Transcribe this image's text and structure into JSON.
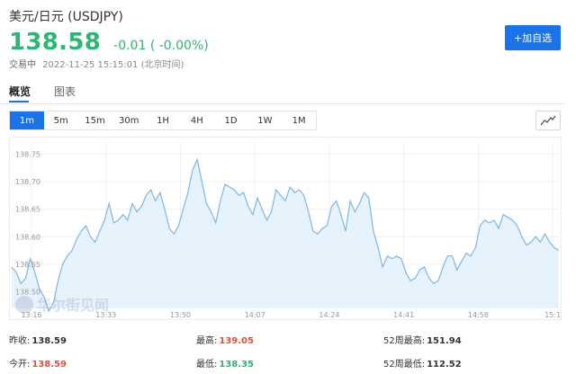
{
  "header": {
    "title": "美元/日元 (USDJPY)",
    "price": "138.58",
    "change": "-0.01 ( -0.00%)",
    "status": "交易中",
    "timestamp": "2022-11-25 15:15:01 (北京时间)"
  },
  "add_button": "+加自选",
  "tabs": [
    {
      "label": "概览",
      "active": true
    },
    {
      "label": "图表",
      "active": false
    }
  ],
  "periods": [
    {
      "label": "1m",
      "active": true
    },
    {
      "label": "5m",
      "active": false
    },
    {
      "label": "15m",
      "active": false
    },
    {
      "label": "30m",
      "active": false
    },
    {
      "label": "1H",
      "active": false
    },
    {
      "label": "4H",
      "active": false
    },
    {
      "label": "1D",
      "active": false
    },
    {
      "label": "1W",
      "active": false
    },
    {
      "label": "1M",
      "active": false
    }
  ],
  "watermark": "华尔街见闻",
  "colors": {
    "up": "#2bb673",
    "down": "#e74c3c",
    "accent": "#1a73e8",
    "line": "#7eb7e6",
    "fill": "#e6f2fc"
  },
  "chart_data": {
    "type": "area",
    "y_ticks": [
      138.75,
      138.7,
      138.65,
      138.6,
      138.55,
      138.5
    ],
    "ylim": [
      138.47,
      138.77
    ],
    "x_ticks": [
      "13:16",
      "13:33",
      "13:50",
      "14:07",
      "14:24",
      "14:41",
      "14:58",
      "15:1"
    ],
    "x": [
      0,
      1,
      2,
      3,
      4,
      5,
      6,
      7,
      8,
      9,
      10,
      11,
      12,
      13,
      14,
      15,
      16,
      17,
      18,
      19,
      20,
      21,
      22,
      23,
      24,
      25,
      26,
      27,
      28,
      29,
      30,
      31,
      32,
      33,
      34,
      35,
      36,
      37,
      38,
      39,
      40,
      41,
      42,
      43,
      44,
      45,
      46,
      47,
      48,
      49,
      50,
      51,
      52,
      53,
      54,
      55,
      56,
      57,
      58,
      59,
      60,
      61,
      62,
      63,
      64,
      65,
      66,
      67,
      68,
      69,
      70,
      71,
      72,
      73,
      74,
      75,
      76,
      77,
      78,
      79,
      80,
      81,
      82,
      83,
      84,
      85,
      86,
      87,
      88,
      89,
      90,
      91,
      92,
      93,
      94,
      95,
      96,
      97,
      98,
      99,
      100,
      101,
      102,
      103,
      104,
      105,
      106,
      107,
      108,
      109,
      110,
      111,
      112,
      113,
      114,
      115,
      116,
      117,
      118
    ],
    "values": [
      138.545,
      138.535,
      138.515,
      138.525,
      138.56,
      138.535,
      138.505,
      138.49,
      138.465,
      138.48,
      138.52,
      138.55,
      138.565,
      138.575,
      138.595,
      138.61,
      138.62,
      138.6,
      138.59,
      138.61,
      138.63,
      138.66,
      138.625,
      138.63,
      138.64,
      138.63,
      138.66,
      138.645,
      138.655,
      138.675,
      138.685,
      138.665,
      138.68,
      138.65,
      138.615,
      138.605,
      138.62,
      138.65,
      138.68,
      138.72,
      138.74,
      138.7,
      138.66,
      138.645,
      138.625,
      138.665,
      138.695,
      138.69,
      138.685,
      138.675,
      138.68,
      138.655,
      138.64,
      138.67,
      138.65,
      138.63,
      138.645,
      138.685,
      138.675,
      138.665,
      138.69,
      138.68,
      138.685,
      138.675,
      138.645,
      138.61,
      138.605,
      138.615,
      138.62,
      138.655,
      138.665,
      138.64,
      138.61,
      138.665,
      138.645,
      138.66,
      138.68,
      138.67,
      138.61,
      138.58,
      138.545,
      138.565,
      138.56,
      138.565,
      138.56,
      138.535,
      138.52,
      138.525,
      138.54,
      138.545,
      138.525,
      138.515,
      138.52,
      138.545,
      138.565,
      138.565,
      138.54,
      138.555,
      138.57,
      138.565,
      138.58,
      138.62,
      138.63,
      138.625,
      138.63,
      138.615,
      138.64,
      138.635,
      138.63,
      138.62,
      138.6,
      138.585,
      138.59,
      138.6,
      138.59,
      138.605,
      138.59,
      138.58,
      138.575
    ]
  },
  "stats": [
    {
      "label": "昨收:",
      "value": "138.59",
      "color": ""
    },
    {
      "label": "最高:",
      "value": "139.05",
      "color": "red"
    },
    {
      "label": "52周最高:",
      "value": "151.94",
      "color": ""
    },
    {
      "label": "今开:",
      "value": "138.59",
      "color": "red"
    },
    {
      "label": "最低:",
      "value": "138.35",
      "color": "green"
    },
    {
      "label": "52周最低:",
      "value": "112.52",
      "color": ""
    }
  ]
}
